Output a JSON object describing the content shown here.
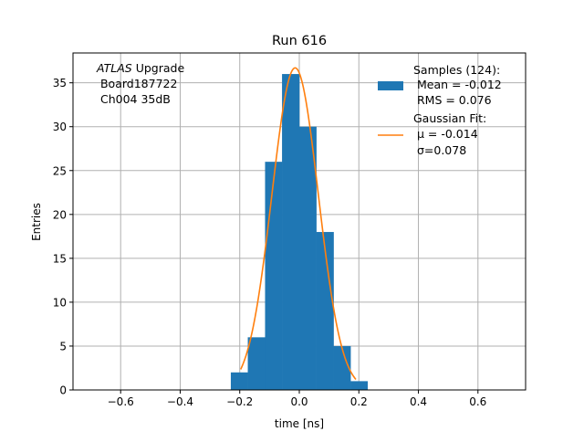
{
  "chart_data": {
    "type": "bar",
    "title": "Run 616",
    "xlabel": "time [ns]",
    "ylabel": "Entries",
    "xlim": [
      -0.76,
      0.76
    ],
    "ylim": [
      0,
      38.4
    ],
    "xticks": [
      -0.6,
      -0.4,
      -0.2,
      0.0,
      0.2,
      0.4,
      0.6
    ],
    "xtick_labels": [
      "−0.6",
      "−0.4",
      "−0.2",
      "0.0",
      "0.2",
      "0.4",
      "0.6"
    ],
    "yticks": [
      0,
      5,
      10,
      15,
      20,
      25,
      30,
      35
    ],
    "ytick_labels": [
      "0",
      "5",
      "10",
      "15",
      "20",
      "25",
      "30",
      "35"
    ],
    "grid": true,
    "legend_placement": "top-right",
    "bin_edges": [
      -0.23,
      -0.173,
      -0.115,
      -0.058,
      0.0,
      0.057,
      0.115,
      0.172,
      0.229
    ],
    "series": [
      {
        "name": "Samples (124):",
        "kind": "histogram",
        "color": "#1f77b4",
        "values": [
          2,
          6,
          26,
          36,
          30,
          18,
          5,
          1
        ]
      },
      {
        "name": "Gaussian Fit:",
        "kind": "line",
        "color": "#ff7f0e",
        "amplitude": 36.7,
        "mu": -0.014,
        "sigma": 0.078,
        "x_range": [
          -0.197,
          0.19
        ]
      }
    ],
    "legend": {
      "samples_lines": [
        "Samples (124):",
        " Mean = -0.012",
        " RMS = 0.076"
      ],
      "fit_lines": [
        "Gaussian Fit:",
        " μ = -0.014",
        " σ=0.078"
      ]
    },
    "annotation": {
      "lines": [
        "ATLAS Upgrade",
        " Board187722",
        " Ch004 35dB"
      ],
      "italic_word": "ATLAS",
      "rest_first_line": " Upgrade"
    }
  }
}
